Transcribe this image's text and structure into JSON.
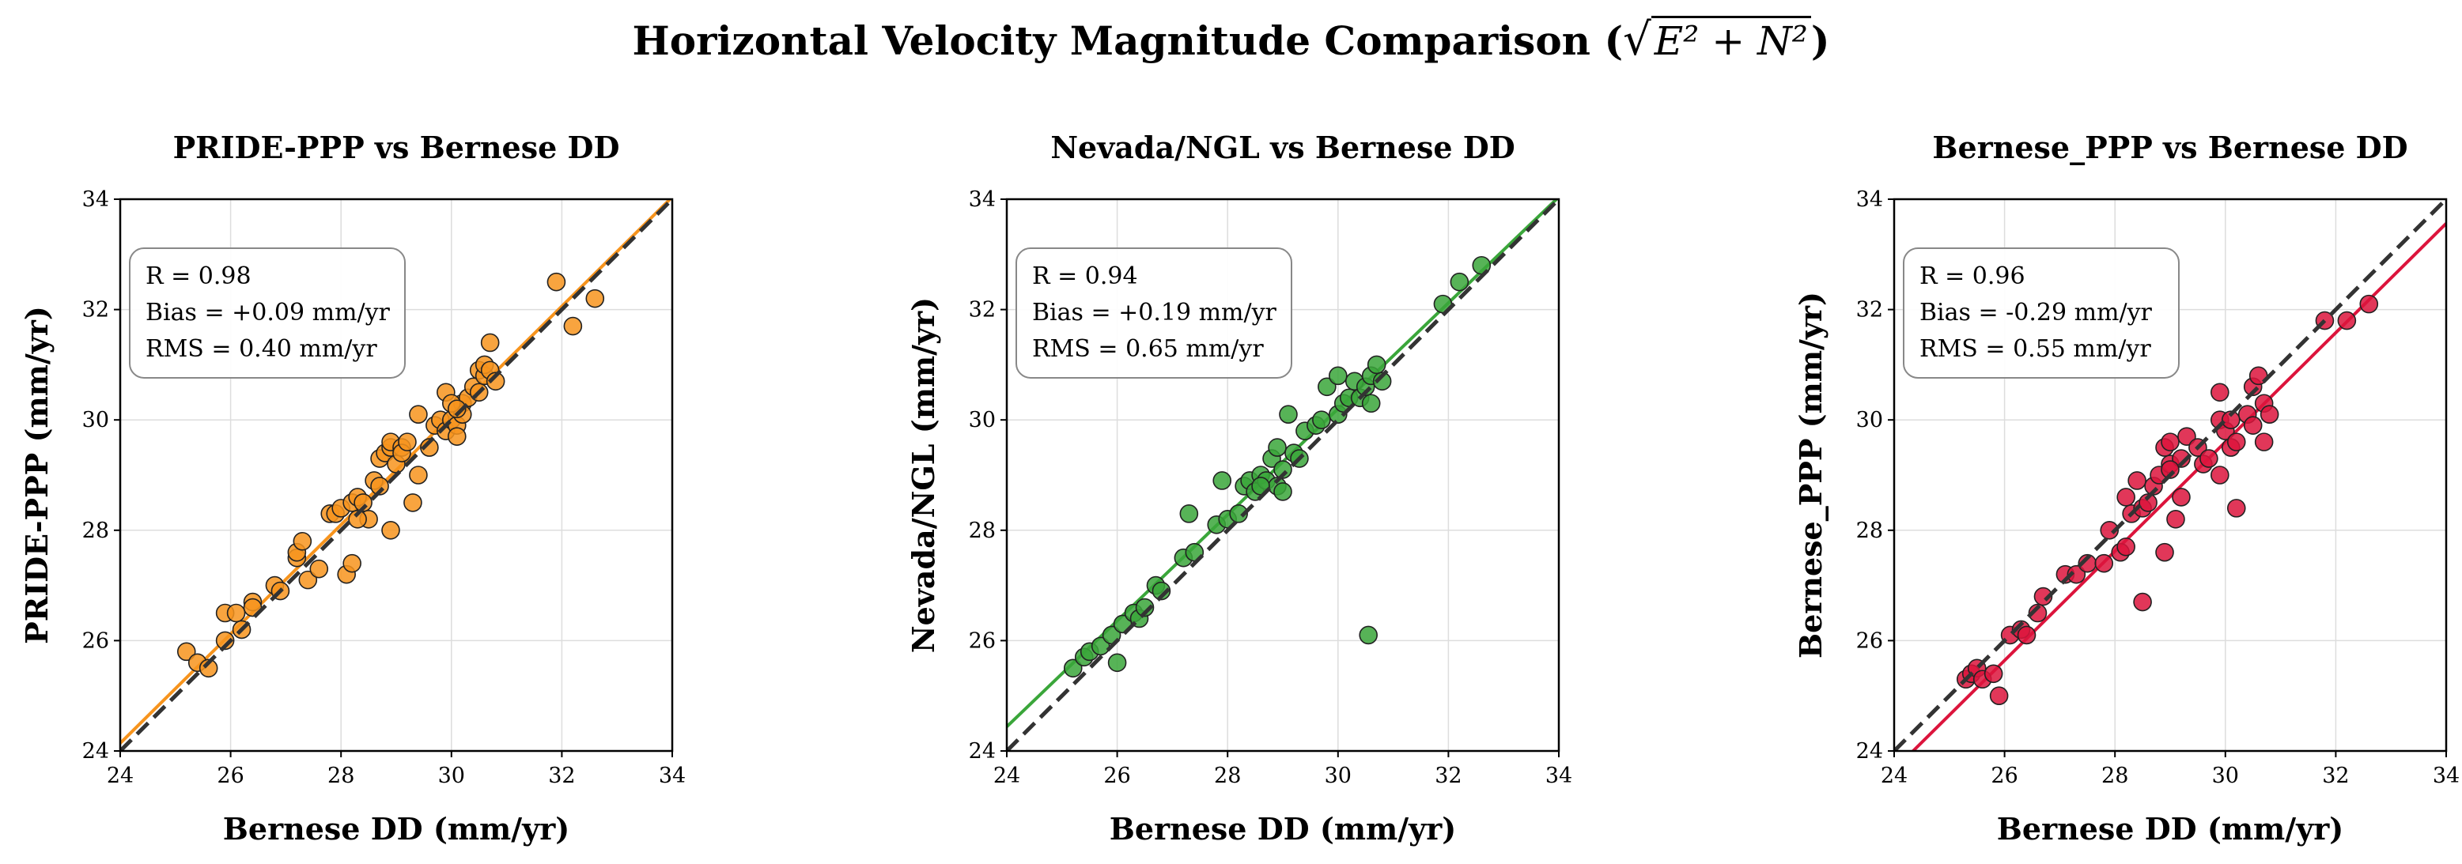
{
  "figure": {
    "title_text": "Horizontal Velocity Magnitude Comparison (",
    "title_math": "E² + N²",
    "title_close": ")"
  },
  "colors": {
    "identity_line": "#333333",
    "grid": "#dddddd"
  },
  "chart_data": [
    {
      "type": "scatter",
      "title": "PRIDE-PPP vs Bernese DD",
      "xlabel": "Bernese DD (mm/yr)",
      "ylabel": "PRIDE-PPP (mm/yr)",
      "xlim": [
        24,
        34
      ],
      "ylim": [
        24,
        34
      ],
      "xticks": [
        "24",
        "26",
        "28",
        "30",
        "32",
        "34"
      ],
      "yticks": [
        "24",
        "26",
        "28",
        "30",
        "32",
        "34"
      ],
      "grid": true,
      "color": "#f7941d",
      "fit": {
        "slope": 0.99,
        "intercept": 0.38
      },
      "identity_line": true,
      "stats": {
        "r": "R = 0.98",
        "bias": "Bias = +0.09 mm/yr",
        "rms": "RMS = 0.40 mm/yr"
      },
      "stats_placement": "top-left",
      "points": [
        [
          25.2,
          25.8
        ],
        [
          25.4,
          25.6
        ],
        [
          25.6,
          25.5
        ],
        [
          25.9,
          26.0
        ],
        [
          25.9,
          26.5
        ],
        [
          26.1,
          26.5
        ],
        [
          26.2,
          26.2
        ],
        [
          26.4,
          26.7
        ],
        [
          26.4,
          26.6
        ],
        [
          26.8,
          27.0
        ],
        [
          26.9,
          26.9
        ],
        [
          27.2,
          27.5
        ],
        [
          27.2,
          27.6
        ],
        [
          27.3,
          27.8
        ],
        [
          27.4,
          27.1
        ],
        [
          27.6,
          27.3
        ],
        [
          27.8,
          28.3
        ],
        [
          27.9,
          28.3
        ],
        [
          28.0,
          28.4
        ],
        [
          28.1,
          27.2
        ],
        [
          28.2,
          27.4
        ],
        [
          28.2,
          28.5
        ],
        [
          28.3,
          28.6
        ],
        [
          28.4,
          28.5
        ],
        [
          28.6,
          28.9
        ],
        [
          28.5,
          28.2
        ],
        [
          28.7,
          28.8
        ],
        [
          28.7,
          29.3
        ],
        [
          28.8,
          29.4
        ],
        [
          28.9,
          29.5
        ],
        [
          28.9,
          29.6
        ],
        [
          29.0,
          29.2
        ],
        [
          29.1,
          29.5
        ],
        [
          29.1,
          29.4
        ],
        [
          29.2,
          29.6
        ],
        [
          29.3,
          28.5
        ],
        [
          29.4,
          30.1
        ],
        [
          29.4,
          29.0
        ],
        [
          29.6,
          29.5
        ],
        [
          29.7,
          29.9
        ],
        [
          29.8,
          30.0
        ],
        [
          29.9,
          29.8
        ],
        [
          29.9,
          30.5
        ],
        [
          30.0,
          30.0
        ],
        [
          30.1,
          29.9
        ],
        [
          30.1,
          29.7
        ],
        [
          30.2,
          30.3
        ],
        [
          30.2,
          30.1
        ],
        [
          30.3,
          30.4
        ],
        [
          30.4,
          30.6
        ],
        [
          30.5,
          30.9
        ],
        [
          30.5,
          30.5
        ],
        [
          30.6,
          30.8
        ],
        [
          30.6,
          31.0
        ],
        [
          30.7,
          30.9
        ],
        [
          30.7,
          31.4
        ],
        [
          30.8,
          30.7
        ],
        [
          31.9,
          32.5
        ],
        [
          32.2,
          31.7
        ],
        [
          32.6,
          32.2
        ],
        [
          28.9,
          28.0
        ],
        [
          28.3,
          28.2
        ],
        [
          30.0,
          30.3
        ],
        [
          30.1,
          30.2
        ]
      ]
    },
    {
      "type": "scatter",
      "title": "Nevada/NGL vs Bernese DD",
      "xlabel": "Bernese DD (mm/yr)",
      "ylabel": "Nevada/NGL (mm/yr)",
      "xlim": [
        24,
        34
      ],
      "ylim": [
        24,
        34
      ],
      "xticks": [
        "24",
        "26",
        "28",
        "30",
        "32",
        "34"
      ],
      "yticks": [
        "24",
        "26",
        "28",
        "30",
        "32",
        "34"
      ],
      "grid": true,
      "color": "#3aa63a",
      "fit": {
        "slope": 0.96,
        "intercept": 1.4
      },
      "identity_line": true,
      "stats": {
        "r": "R = 0.94",
        "bias": "Bias = +0.19 mm/yr",
        "rms": "RMS = 0.65 mm/yr"
      },
      "stats_placement": "top-left",
      "points": [
        [
          25.2,
          25.5
        ],
        [
          25.4,
          25.7
        ],
        [
          25.5,
          25.8
        ],
        [
          25.7,
          25.9
        ],
        [
          25.9,
          26.1
        ],
        [
          26.0,
          25.6
        ],
        [
          26.1,
          26.3
        ],
        [
          26.3,
          26.5
        ],
        [
          26.4,
          26.4
        ],
        [
          26.5,
          26.6
        ],
        [
          26.7,
          27.0
        ],
        [
          26.8,
          26.9
        ],
        [
          27.2,
          27.5
        ],
        [
          27.3,
          28.3
        ],
        [
          27.4,
          27.6
        ],
        [
          27.8,
          28.1
        ],
        [
          27.9,
          28.9
        ],
        [
          28.0,
          28.2
        ],
        [
          28.2,
          28.3
        ],
        [
          28.3,
          28.8
        ],
        [
          28.4,
          28.9
        ],
        [
          28.5,
          28.7
        ],
        [
          28.6,
          29.0
        ],
        [
          28.7,
          28.9
        ],
        [
          28.8,
          29.3
        ],
        [
          28.9,
          29.5
        ],
        [
          28.9,
          28.8
        ],
        [
          29.0,
          29.1
        ],
        [
          29.1,
          30.1
        ],
        [
          29.2,
          29.4
        ],
        [
          29.3,
          29.3
        ],
        [
          29.4,
          29.8
        ],
        [
          29.6,
          29.9
        ],
        [
          29.7,
          30.0
        ],
        [
          29.8,
          30.6
        ],
        [
          30.0,
          30.1
        ],
        [
          30.1,
          30.3
        ],
        [
          30.2,
          30.4
        ],
        [
          30.3,
          30.7
        ],
        [
          30.4,
          30.4
        ],
        [
          30.5,
          30.6
        ],
        [
          30.6,
          30.8
        ],
        [
          30.7,
          31.0
        ],
        [
          30.8,
          30.7
        ],
        [
          31.9,
          32.1
        ],
        [
          32.2,
          32.5
        ],
        [
          32.6,
          32.8
        ],
        [
          30.55,
          26.1
        ],
        [
          29.0,
          28.7
        ],
        [
          30.0,
          30.8
        ],
        [
          30.6,
          30.3
        ],
        [
          28.6,
          28.8
        ]
      ]
    },
    {
      "type": "scatter",
      "title": "Bernese_PPP vs Bernese DD",
      "xlabel": "Bernese DD (mm/yr)",
      "ylabel": "Bernese_PPP (mm/yr)",
      "xlim": [
        24,
        34
      ],
      "ylim": [
        24,
        34
      ],
      "xticks": [
        "24",
        "26",
        "28",
        "30",
        "32",
        "34"
      ],
      "yticks": [
        "24",
        "26",
        "28",
        "30",
        "32",
        "34"
      ],
      "grid": true,
      "color": "#dc143c",
      "fit": {
        "slope": 0.99,
        "intercept": -0.1
      },
      "identity_line": true,
      "stats": {
        "r": "R = 0.96",
        "bias": "Bias = -0.29 mm/yr",
        "rms": "RMS = 0.55 mm/yr"
      },
      "stats_placement": "top-left",
      "points": [
        [
          25.3,
          25.3
        ],
        [
          25.4,
          25.4
        ],
        [
          25.5,
          25.5
        ],
        [
          25.6,
          25.3
        ],
        [
          25.8,
          25.4
        ],
        [
          25.9,
          25.0
        ],
        [
          26.1,
          26.1
        ],
        [
          26.3,
          26.2
        ],
        [
          26.4,
          26.1
        ],
        [
          26.6,
          26.5
        ],
        [
          26.7,
          26.8
        ],
        [
          27.1,
          27.2
        ],
        [
          27.3,
          27.2
        ],
        [
          27.5,
          27.4
        ],
        [
          27.8,
          27.4
        ],
        [
          27.9,
          28.0
        ],
        [
          28.1,
          27.6
        ],
        [
          28.2,
          27.7
        ],
        [
          28.2,
          28.6
        ],
        [
          28.3,
          28.3
        ],
        [
          28.5,
          28.4
        ],
        [
          28.5,
          26.7
        ],
        [
          28.6,
          28.5
        ],
        [
          28.7,
          28.8
        ],
        [
          28.8,
          29.0
        ],
        [
          28.9,
          29.5
        ],
        [
          28.9,
          27.6
        ],
        [
          29.0,
          29.2
        ],
        [
          29.0,
          29.6
        ],
        [
          29.1,
          28.2
        ],
        [
          29.2,
          29.3
        ],
        [
          29.2,
          28.6
        ],
        [
          29.3,
          29.7
        ],
        [
          29.5,
          29.5
        ],
        [
          29.6,
          29.2
        ],
        [
          29.7,
          29.3
        ],
        [
          29.9,
          30.0
        ],
        [
          29.9,
          29.0
        ],
        [
          29.9,
          30.5
        ],
        [
          30.0,
          29.8
        ],
        [
          30.1,
          29.5
        ],
        [
          30.2,
          28.4
        ],
        [
          30.2,
          29.6
        ],
        [
          30.4,
          30.1
        ],
        [
          30.5,
          29.9
        ],
        [
          30.5,
          30.6
        ],
        [
          30.6,
          30.8
        ],
        [
          30.7,
          29.6
        ],
        [
          30.7,
          30.3
        ],
        [
          30.8,
          30.1
        ],
        [
          31.8,
          31.8
        ],
        [
          32.2,
          31.8
        ],
        [
          32.6,
          32.1
        ],
        [
          28.4,
          28.9
        ],
        [
          29.0,
          29.1
        ],
        [
          30.1,
          30.0
        ]
      ]
    }
  ]
}
